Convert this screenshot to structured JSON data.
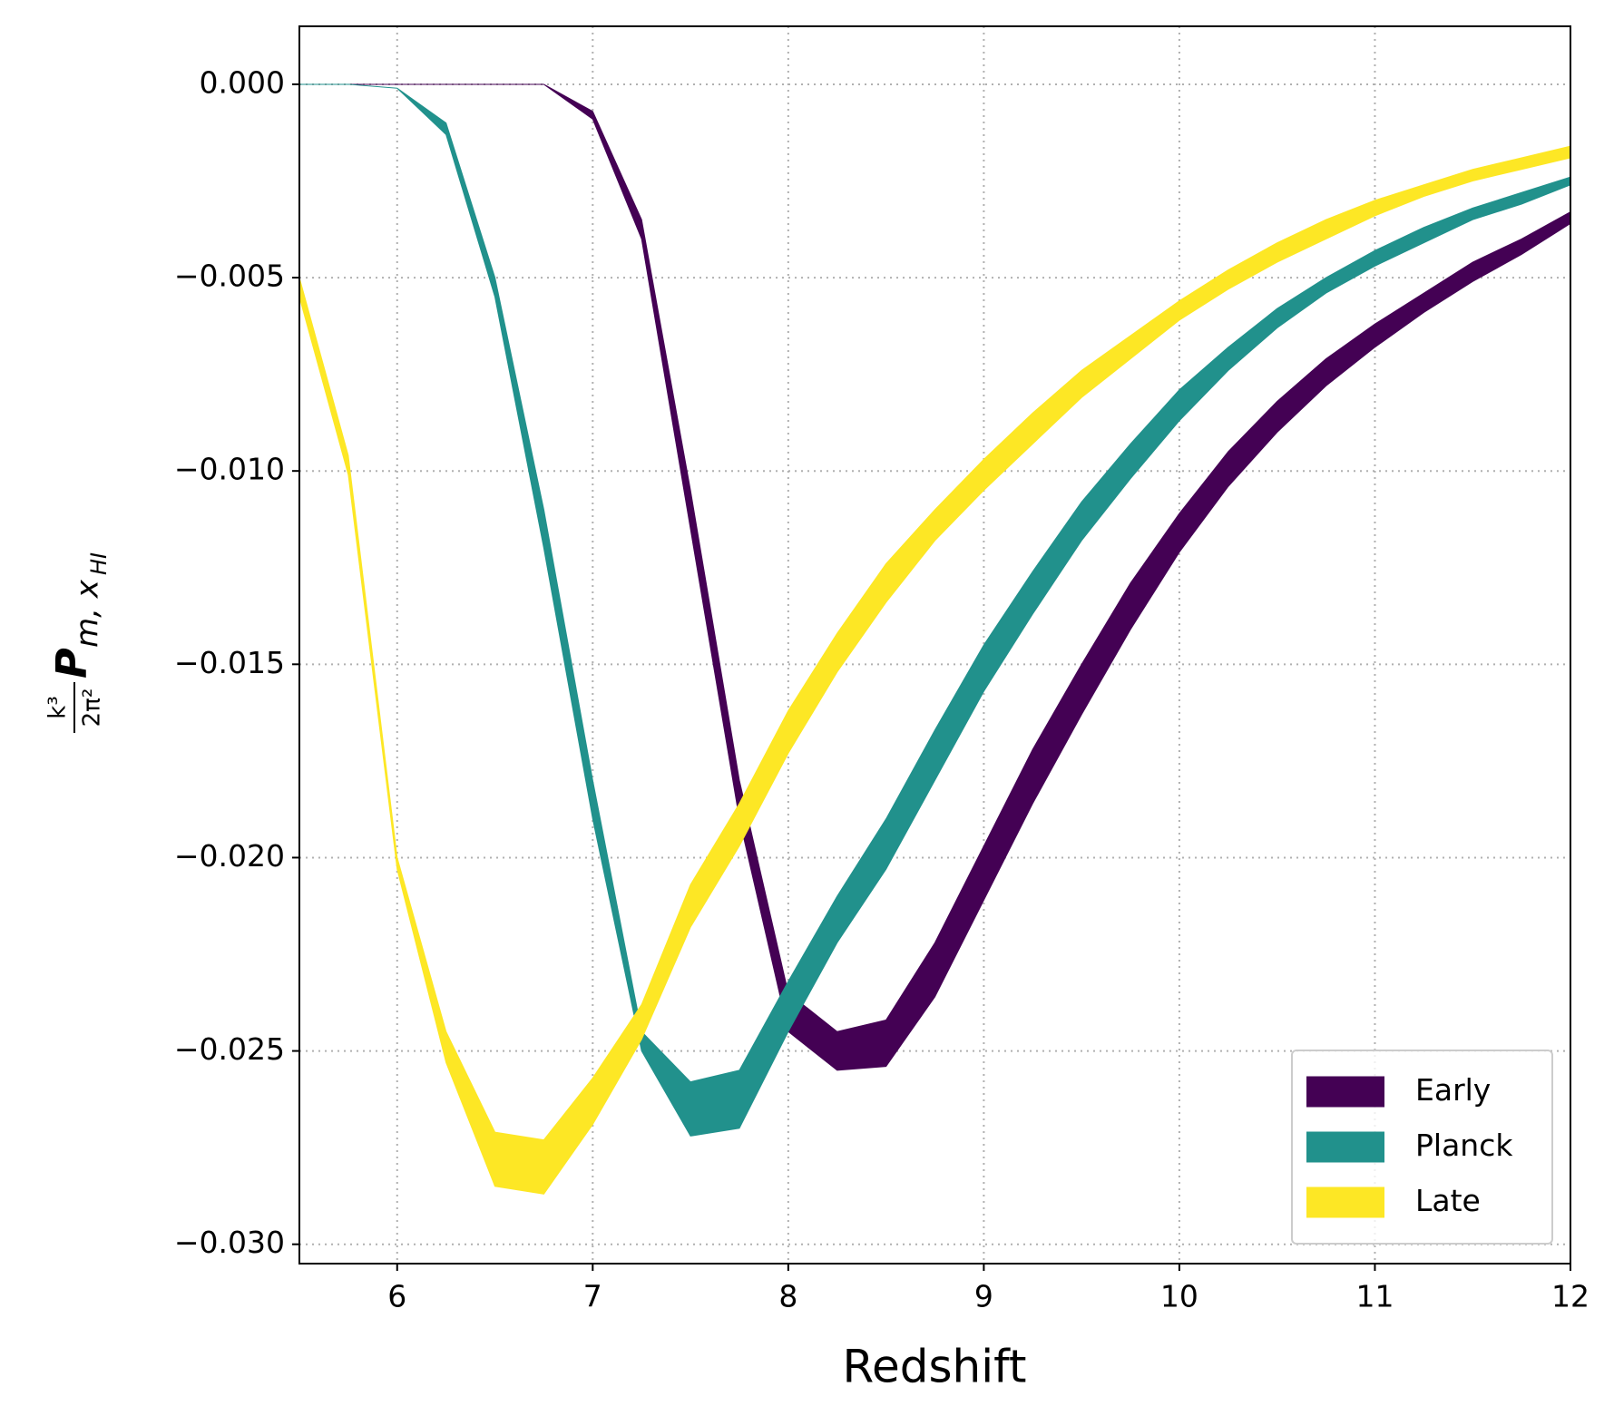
{
  "chart_data": {
    "type": "band",
    "xlabel": "Redshift",
    "ylabel": {
      "numerator": "k³",
      "denominator": "2π²",
      "symbol": "P",
      "subscript": "m, x",
      "subsubscript": "HI"
    },
    "x": [
      5.5,
      5.75,
      6.0,
      6.25,
      6.5,
      6.75,
      7.0,
      7.25,
      7.5,
      7.75,
      8.0,
      8.25,
      8.5,
      8.75,
      9.0,
      9.25,
      9.5,
      9.75,
      10.0,
      10.25,
      10.5,
      10.75,
      11.0,
      11.25,
      11.5,
      11.75,
      12.0
    ],
    "series": [
      {
        "name": "Early",
        "color": "#440154",
        "upper": [
          0,
          0,
          0,
          0,
          0,
          0,
          -0.0007,
          -0.0035,
          -0.0105,
          -0.018,
          -0.0235,
          -0.0245,
          -0.0242,
          -0.0222,
          -0.0197,
          -0.0172,
          -0.015,
          -0.0129,
          -0.0111,
          -0.0095,
          -0.0082,
          -0.0071,
          -0.0062,
          -0.0054,
          -0.0046,
          -0.004,
          -0.0033
        ],
        "lower": [
          0,
          0,
          0,
          0,
          0,
          0,
          -0.0009,
          -0.004,
          -0.0115,
          -0.019,
          -0.0245,
          -0.0255,
          -0.0254,
          -0.0236,
          -0.0211,
          -0.0186,
          -0.0163,
          -0.0141,
          -0.0121,
          -0.0104,
          -0.009,
          -0.0078,
          -0.0068,
          -0.0059,
          -0.0051,
          -0.0044,
          -0.0036
        ]
      },
      {
        "name": "Planck",
        "color": "#21918c",
        "upper": [
          0,
          0,
          -0.0001,
          -0.001,
          -0.005,
          -0.011,
          -0.018,
          -0.0245,
          -0.0258,
          -0.0255,
          -0.0232,
          -0.021,
          -0.019,
          -0.0167,
          -0.0145,
          -0.0126,
          -0.0108,
          -0.0093,
          -0.0079,
          -0.0068,
          -0.0058,
          -0.005,
          -0.0043,
          -0.0037,
          -0.0032,
          -0.0028,
          -0.0024
        ],
        "lower": [
          0,
          0,
          -0.0001,
          -0.0013,
          -0.0055,
          -0.012,
          -0.019,
          -0.025,
          -0.0272,
          -0.027,
          -0.0245,
          -0.0222,
          -0.0203,
          -0.018,
          -0.0157,
          -0.0137,
          -0.0118,
          -0.0102,
          -0.0087,
          -0.0074,
          -0.0063,
          -0.0054,
          -0.0047,
          -0.0041,
          -0.0035,
          -0.0031,
          -0.0026
        ]
      },
      {
        "name": "Late",
        "color": "#fde725",
        "upper": [
          -0.005,
          -0.0096,
          -0.02,
          -0.0245,
          -0.0271,
          -0.0273,
          -0.0257,
          -0.0238,
          -0.0207,
          -0.0186,
          -0.0162,
          -0.0142,
          -0.0124,
          -0.011,
          -0.0097,
          -0.0085,
          -0.0074,
          -0.0065,
          -0.0056,
          -0.0048,
          -0.0041,
          -0.0035,
          -0.003,
          -0.0026,
          -0.0022,
          -0.0019,
          -0.0016
        ],
        "lower": [
          -0.0055,
          -0.0101,
          -0.0203,
          -0.0253,
          -0.0285,
          -0.0287,
          -0.0269,
          -0.0247,
          -0.0218,
          -0.0197,
          -0.0173,
          -0.0152,
          -0.0134,
          -0.0118,
          -0.0105,
          -0.0093,
          -0.0081,
          -0.0071,
          -0.0061,
          -0.0053,
          -0.0046,
          -0.004,
          -0.0034,
          -0.0029,
          -0.0025,
          -0.0022,
          -0.0019
        ]
      }
    ],
    "xlim": [
      5.5,
      12
    ],
    "ylim": [
      -0.0305,
      0.0015
    ],
    "xticks": [
      6,
      7,
      8,
      9,
      10,
      11,
      12
    ],
    "yticks": [
      {
        "value": 0,
        "label": "0.000"
      },
      {
        "value": -0.005,
        "label": "−0.005"
      },
      {
        "value": -0.01,
        "label": "−0.010"
      },
      {
        "value": -0.015,
        "label": "−0.015"
      },
      {
        "value": -0.02,
        "label": "−0.020"
      },
      {
        "value": -0.025,
        "label": "−0.025"
      },
      {
        "value": -0.03,
        "label": "−0.030"
      }
    ],
    "grid": true,
    "legend": "lower right"
  }
}
